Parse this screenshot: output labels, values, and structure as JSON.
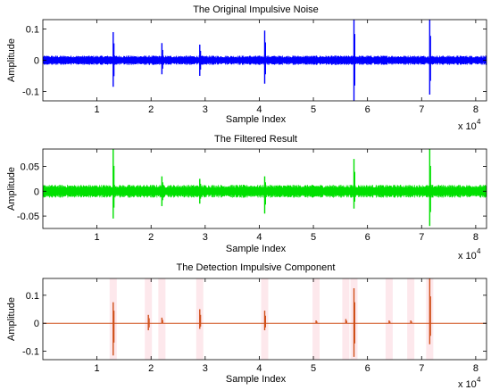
{
  "chart_data": [
    {
      "type": "line",
      "title": "The Original Impulsive Noise",
      "xlabel": "Sample Index",
      "ylabel": "Amplitude",
      "x_multiplier_base": "x 10",
      "x_multiplier_exp": "4",
      "xlim": [
        0,
        82000
      ],
      "ylim": [
        -0.13,
        0.13
      ],
      "xticks": [
        10000,
        20000,
        30000,
        40000,
        50000,
        60000,
        70000,
        80000
      ],
      "xtick_labels": [
        "1",
        "2",
        "3",
        "4",
        "5",
        "6",
        "7",
        "8"
      ],
      "yticks": [
        -0.1,
        0,
        0.1
      ],
      "ytick_labels": [
        "-0.1",
        "0",
        "0.1"
      ],
      "noise_amplitude": 0.015,
      "color": "#0000ff",
      "impulses": [
        {
          "x": 13000,
          "top": 0.09,
          "bottom": -0.085
        },
        {
          "x": 22000,
          "top": 0.055,
          "bottom": -0.045
        },
        {
          "x": 29000,
          "top": 0.05,
          "bottom": -0.05
        },
        {
          "x": 41000,
          "top": 0.095,
          "bottom": -0.075
        },
        {
          "x": 57500,
          "top": 0.14,
          "bottom": -0.135
        },
        {
          "x": 71500,
          "top": 0.13,
          "bottom": -0.11
        }
      ]
    },
    {
      "type": "line",
      "title": "The Filtered Result",
      "xlabel": "Sample Index",
      "ylabel": "Amplitude",
      "x_multiplier_base": "x 10",
      "x_multiplier_exp": "4",
      "xlim": [
        0,
        82000
      ],
      "ylim": [
        -0.075,
        0.085
      ],
      "xticks": [
        10000,
        20000,
        30000,
        40000,
        50000,
        60000,
        70000,
        80000
      ],
      "xtick_labels": [
        "1",
        "2",
        "3",
        "4",
        "5",
        "6",
        "7",
        "8"
      ],
      "yticks": [
        -0.05,
        0,
        0.05
      ],
      "ytick_labels": [
        "-0.05",
        "0",
        "0.05"
      ],
      "noise_amplitude": 0.013,
      "color": "#00e000",
      "impulses": [
        {
          "x": 13000,
          "top": 0.085,
          "bottom": -0.055
        },
        {
          "x": 22000,
          "top": 0.03,
          "bottom": -0.03
        },
        {
          "x": 29000,
          "top": 0.025,
          "bottom": -0.025
        },
        {
          "x": 41000,
          "top": 0.03,
          "bottom": -0.045
        },
        {
          "x": 57500,
          "top": 0.065,
          "bottom": -0.035
        },
        {
          "x": 71500,
          "top": 0.085,
          "bottom": -0.07
        }
      ]
    },
    {
      "type": "line",
      "title": "The Detection Impulsive Component",
      "xlabel": "Sample Index",
      "ylabel": "Amplitude",
      "x_multiplier_base": "x 10",
      "x_multiplier_exp": "4",
      "xlim": [
        0,
        82000
      ],
      "ylim": [
        -0.13,
        0.16
      ],
      "xticks": [
        10000,
        20000,
        30000,
        40000,
        50000,
        60000,
        70000,
        80000
      ],
      "xtick_labels": [
        "1",
        "2",
        "3",
        "4",
        "5",
        "6",
        "7",
        "8"
      ],
      "yticks": [
        -0.1,
        0,
        0.1
      ],
      "ytick_labels": [
        "-0.1",
        "0",
        "0.1"
      ],
      "noise_amplitude": 0,
      "color": "#d0501a",
      "impulses": [
        {
          "x": 13000,
          "top": 0.075,
          "bottom": -0.115
        },
        {
          "x": 19500,
          "top": 0.03,
          "bottom": -0.025
        },
        {
          "x": 22000,
          "top": 0.02,
          "bottom": 0
        },
        {
          "x": 29000,
          "top": 0.05,
          "bottom": -0.02
        },
        {
          "x": 41000,
          "top": 0.045,
          "bottom": -0.025
        },
        {
          "x": 50500,
          "top": 0.01,
          "bottom": 0
        },
        {
          "x": 56000,
          "top": 0.015,
          "bottom": 0
        },
        {
          "x": 57500,
          "top": 0.125,
          "bottom": -0.12
        },
        {
          "x": 64000,
          "top": 0.01,
          "bottom": 0
        },
        {
          "x": 68000,
          "top": 0.01,
          "bottom": 0
        },
        {
          "x": 71500,
          "top": 0.16,
          "bottom": -0.075
        }
      ]
    }
  ]
}
